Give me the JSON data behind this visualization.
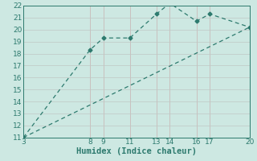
{
  "line1_x": [
    3,
    8,
    9,
    11,
    13,
    14,
    16,
    17,
    20
  ],
  "line1_y": [
    11,
    18.3,
    19.3,
    19.3,
    21.3,
    22.2,
    20.7,
    21.3,
    20.2
  ],
  "line2_x": [
    3,
    20
  ],
  "line2_y": [
    11,
    20.2
  ],
  "color": "#2d7a6e",
  "bg_color": "#cde8e2",
  "grid_major_color": "#b5d5cf",
  "grid_minor_color": "#d8eeea",
  "xlabel": "Humidex (Indice chaleur)",
  "xlim": [
    3,
    20
  ],
  "ylim": [
    11,
    22
  ],
  "xticks": [
    3,
    8,
    9,
    11,
    13,
    14,
    16,
    17,
    20
  ],
  "yticks": [
    11,
    12,
    13,
    14,
    15,
    16,
    17,
    18,
    19,
    20,
    21,
    22
  ],
  "marker": "D",
  "markersize": 2.5,
  "linewidth": 0.9,
  "xlabel_fontsize": 7.5,
  "tick_fontsize": 6.5
}
